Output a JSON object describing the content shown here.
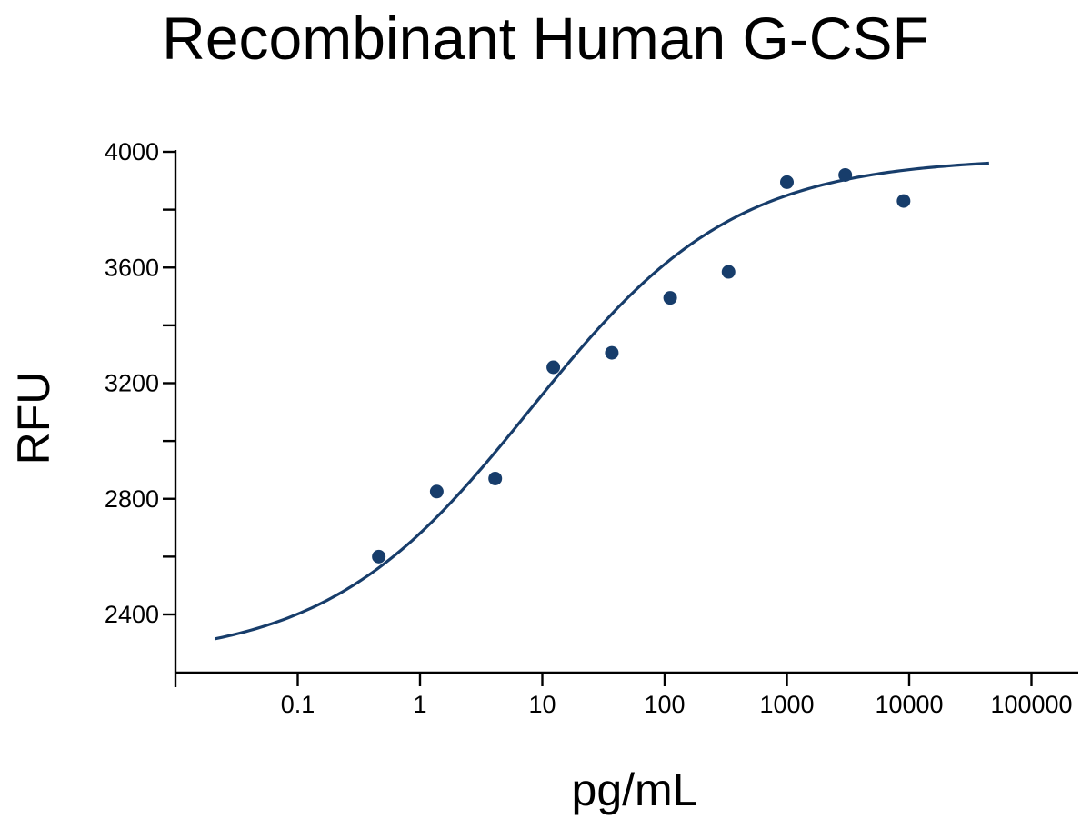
{
  "chart_data": {
    "type": "scatter",
    "title": "Recombinant Human G-CSF",
    "xlabel": "pg/mL",
    "ylabel": "RFU",
    "x_scale": "log",
    "xlim": [
      0.0165,
      120000
    ],
    "ylim": [
      2200,
      4000
    ],
    "x_ticks": [
      {
        "value": 0.1,
        "label": "0.1"
      },
      {
        "value": 1,
        "label": "1"
      },
      {
        "value": 10,
        "label": "10"
      },
      {
        "value": 100,
        "label": "100"
      },
      {
        "value": 1000,
        "label": "1000"
      },
      {
        "value": 10000,
        "label": "10000"
      },
      {
        "value": 100000,
        "label": "100000"
      }
    ],
    "y_ticks": [
      {
        "value": 2400,
        "label": "2400"
      },
      {
        "value": 2800,
        "label": "2800"
      },
      {
        "value": 3200,
        "label": "3200"
      },
      {
        "value": 3600,
        "label": "3600"
      },
      {
        "value": 4000,
        "label": "4000"
      }
    ],
    "y_minor_ticks": [
      2600,
      3000,
      3400,
      3800
    ],
    "grid": false,
    "series": [
      {
        "type": "scatter",
        "color": "#173d6b",
        "points": [
          {
            "x": 0.46,
            "y": 2600
          },
          {
            "x": 1.37,
            "y": 2825
          },
          {
            "x": 4.12,
            "y": 2870
          },
          {
            "x": 12.3,
            "y": 3255
          },
          {
            "x": 37,
            "y": 3305
          },
          {
            "x": 111,
            "y": 3495
          },
          {
            "x": 333,
            "y": 3585
          },
          {
            "x": 1000,
            "y": 3895
          },
          {
            "x": 3000,
            "y": 3920
          },
          {
            "x": 9000,
            "y": 3830
          }
        ]
      },
      {
        "type": "line",
        "color": "#173d6b",
        "fit": "4PL",
        "params": {
          "bottom": 2240,
          "top": 3980,
          "ec50": 8.0,
          "hill": 0.52
        },
        "x_range": [
          0.021,
          45000
        ]
      }
    ]
  }
}
